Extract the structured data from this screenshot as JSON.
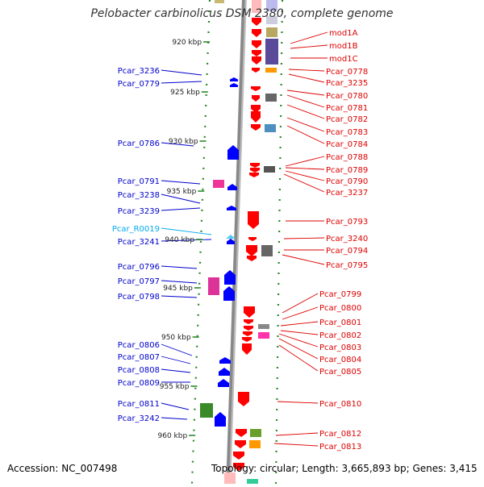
{
  "title": "Pelobacter carbinolicus DSM 2380, complete genome",
  "footer": {
    "accession": "Accession: NC_007498",
    "summary": "Topology: circular; Length: 3,665,893 bp; Genes: 3,415"
  },
  "colors": {
    "left_label": "#0000cc",
    "right_label": "#dd0000",
    "rna_label": "#00aaee",
    "forward_gene": "#0000ff",
    "reverse_gene": "#ff0000",
    "tick": "#2a8a2a",
    "backbone": "#888888"
  },
  "scale_labels": [
    "920 kbp",
    "925 kbp",
    "930 kbp",
    "935 kbp",
    "940 kbp",
    "945 kbp",
    "950 kbp",
    "955 kbp",
    "960 kbp"
  ],
  "left_labels": [
    "Pcar_3236",
    "Pcar_0779",
    "Pcar_0786",
    "Pcar_0791",
    "Pcar_3238",
    "Pcar_3239",
    "Pcar_R0019",
    "Pcar_3241",
    "Pcar_0796",
    "Pcar_0797",
    "Pcar_0798",
    "Pcar_0806",
    "Pcar_0807",
    "Pcar_0808",
    "Pcar_0809",
    "Pcar_0811",
    "Pcar_3242"
  ],
  "right_labels": [
    "mod1A",
    "mod1B",
    "mod1C",
    "Pcar_0778",
    "Pcar_3235",
    "Pcar_0780",
    "Pcar_0781",
    "Pcar_0782",
    "Pcar_0783",
    "Pcar_0784",
    "Pcar_0788",
    "Pcar_0789",
    "Pcar_0790",
    "Pcar_3237",
    "Pcar_0793",
    "Pcar_3240",
    "Pcar_0794",
    "Pcar_0795",
    "Pcar_0799",
    "Pcar_0800",
    "Pcar_0801",
    "Pcar_0802",
    "Pcar_0803",
    "Pcar_0804",
    "Pcar_0805",
    "Pcar_0810",
    "Pcar_0812",
    "Pcar_0813"
  ]
}
